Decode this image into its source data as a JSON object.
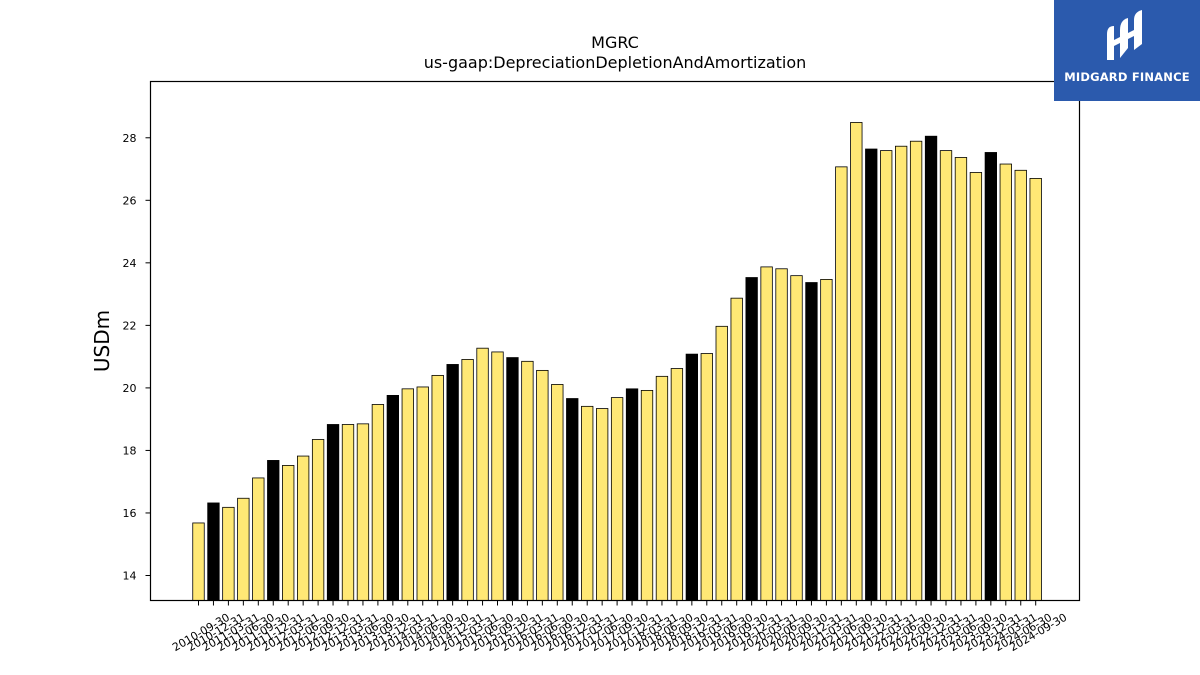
{
  "logo": {
    "text": "MIDGARD FINANCE",
    "background": "#2b5aad"
  },
  "chart_data": {
    "type": "bar",
    "title": "MGRC",
    "subtitle": "us-gaap:DepreciationDepletionAndAmortization",
    "ylabel": "USDm",
    "xlabel": "",
    "ylim": [
      13.2,
      29.8
    ],
    "yticks": [
      14,
      16,
      18,
      20,
      22,
      24,
      26,
      28
    ],
    "grid": false,
    "colors": {
      "regular": "#ffe875",
      "fiscal_year_end": "#000000",
      "edge": "#000000"
    },
    "categories": [
      "2010-09-30",
      "2010-12-31",
      "2011-03-31",
      "2011-06-30",
      "2011-09-30",
      "2011-12-31",
      "2012-03-31",
      "2012-06-30",
      "2012-09-30",
      "2012-12-31",
      "2013-03-31",
      "2013-06-30",
      "2013-09-30",
      "2013-12-31",
      "2014-03-31",
      "2014-06-30",
      "2014-09-30",
      "2014-12-31",
      "2015-03-31",
      "2015-06-30",
      "2015-09-30",
      "2015-12-31",
      "2016-03-31",
      "2016-06-30",
      "2016-09-30",
      "2016-12-31",
      "2017-03-31",
      "2017-06-30",
      "2017-09-30",
      "2017-12-31",
      "2018-03-31",
      "2018-06-30",
      "2018-09-30",
      "2018-12-31",
      "2019-03-31",
      "2019-06-30",
      "2019-09-30",
      "2019-12-31",
      "2020-03-31",
      "2020-06-30",
      "2020-09-30",
      "2020-12-31",
      "2021-03-31",
      "2021-06-30",
      "2021-09-30",
      "2021-12-31",
      "2022-03-31",
      "2022-06-30",
      "2022-09-30",
      "2022-12-31",
      "2023-03-31",
      "2023-06-30",
      "2023-09-30",
      "2023-12-31",
      "2024-03-31",
      "2024-06-30",
      "2024-09-30"
    ],
    "values": [
      15.68,
      16.32,
      16.18,
      16.47,
      17.12,
      17.68,
      17.52,
      17.82,
      18.35,
      18.83,
      18.83,
      18.85,
      19.47,
      19.76,
      19.97,
      20.03,
      20.4,
      20.75,
      20.91,
      21.27,
      21.15,
      20.97,
      20.85,
      20.56,
      20.11,
      19.66,
      19.41,
      19.34,
      19.69,
      19.97,
      19.92,
      20.37,
      20.62,
      21.08,
      21.1,
      21.97,
      22.87,
      23.53,
      23.87,
      23.81,
      23.59,
      23.37,
      23.47,
      27.07,
      28.49,
      27.64,
      27.59,
      27.73,
      27.89,
      28.05,
      27.59,
      27.37,
      26.89,
      27.53,
      27.16,
      26.96,
      26.7
    ],
    "highlight": [
      false,
      true,
      false,
      false,
      false,
      true,
      false,
      false,
      false,
      true,
      false,
      false,
      false,
      true,
      false,
      false,
      false,
      true,
      false,
      false,
      false,
      true,
      false,
      false,
      false,
      true,
      false,
      false,
      false,
      true,
      false,
      false,
      false,
      true,
      false,
      false,
      false,
      true,
      false,
      false,
      false,
      true,
      false,
      false,
      false,
      true,
      false,
      false,
      false,
      true,
      false,
      false,
      false,
      true,
      false,
      false,
      false
    ]
  }
}
